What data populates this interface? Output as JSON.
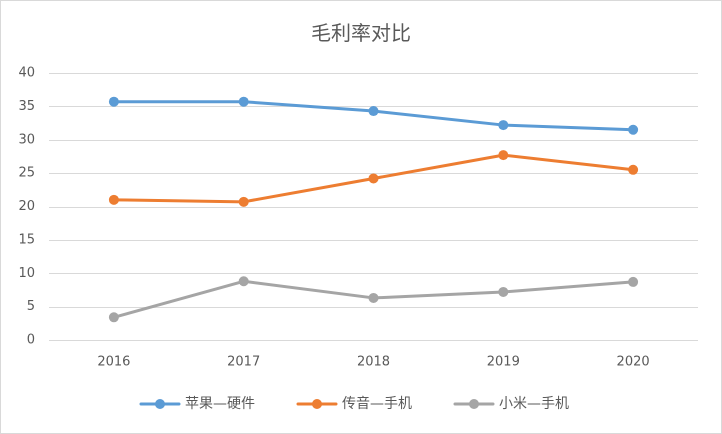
{
  "chart_data": {
    "type": "line",
    "title": "毛利率对比",
    "categories": [
      "2016",
      "2017",
      "2018",
      "2019",
      "2020"
    ],
    "ylim": [
      0,
      40
    ],
    "yticks": [
      0,
      5,
      10,
      15,
      20,
      25,
      30,
      35,
      40
    ],
    "grid": true,
    "legend": "bottom",
    "series": [
      {
        "name": "苹果—硬件",
        "color": "#5B9BD5",
        "values": [
          35.7,
          35.7,
          34.3,
          32.2,
          31.5
        ]
      },
      {
        "name": "传音—手机",
        "color": "#ED7D31",
        "values": [
          21.0,
          20.7,
          24.2,
          27.7,
          25.5
        ]
      },
      {
        "name": "小米—手机",
        "color": "#A5A5A5",
        "values": [
          3.4,
          8.8,
          6.3,
          7.2,
          8.7
        ]
      }
    ]
  }
}
